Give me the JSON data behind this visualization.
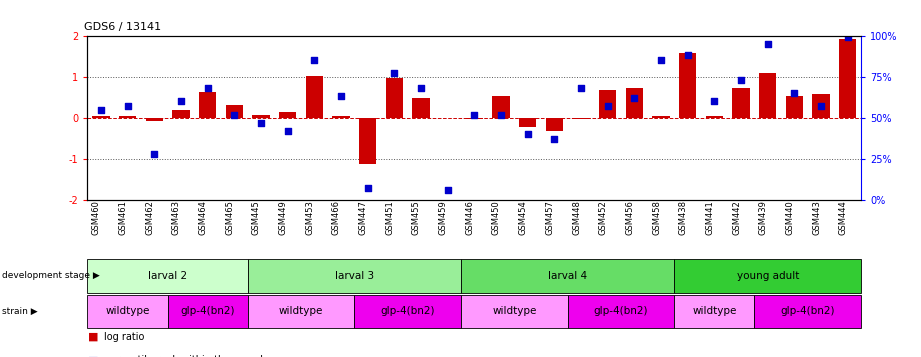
{
  "title": "GDS6 / 13141",
  "samples": [
    "GSM460",
    "GSM461",
    "GSM462",
    "GSM463",
    "GSM464",
    "GSM465",
    "GSM445",
    "GSM449",
    "GSM453",
    "GSM466",
    "GSM447",
    "GSM451",
    "GSM455",
    "GSM459",
    "GSM446",
    "GSM450",
    "GSM454",
    "GSM457",
    "GSM448",
    "GSM452",
    "GSM456",
    "GSM458",
    "GSM438",
    "GSM441",
    "GSM442",
    "GSM439",
    "GSM440",
    "GSM443",
    "GSM444"
  ],
  "log_ratio": [
    0.05,
    0.04,
    -0.08,
    0.18,
    0.62,
    0.32,
    0.08,
    0.15,
    1.02,
    0.04,
    -1.12,
    0.98,
    0.48,
    0.0,
    -0.04,
    0.52,
    -0.22,
    -0.32,
    -0.04,
    0.68,
    0.72,
    0.04,
    1.58,
    0.04,
    0.72,
    1.08,
    0.52,
    0.58,
    1.92
  ],
  "percentile": [
    55,
    57,
    28,
    60,
    68,
    52,
    47,
    42,
    85,
    63,
    7,
    77,
    68,
    6,
    52,
    52,
    40,
    37,
    68,
    57,
    62,
    85,
    88,
    60,
    73,
    95,
    65,
    57,
    99
  ],
  "dev_stages": [
    {
      "label": "larval 2",
      "start": 0,
      "end": 6,
      "color": "#ccffcc"
    },
    {
      "label": "larval 3",
      "start": 6,
      "end": 14,
      "color": "#99ee99"
    },
    {
      "label": "larval 4",
      "start": 14,
      "end": 22,
      "color": "#66dd66"
    },
    {
      "label": "young adult",
      "start": 22,
      "end": 29,
      "color": "#33cc33"
    }
  ],
  "strains": [
    {
      "label": "wildtype",
      "start": 0,
      "end": 3,
      "color": "#ff99ff"
    },
    {
      "label": "glp-4(bn2)",
      "start": 3,
      "end": 6,
      "color": "#ee00ee"
    },
    {
      "label": "wildtype",
      "start": 6,
      "end": 10,
      "color": "#ff99ff"
    },
    {
      "label": "glp-4(bn2)",
      "start": 10,
      "end": 14,
      "color": "#ee00ee"
    },
    {
      "label": "wildtype",
      "start": 14,
      "end": 18,
      "color": "#ff99ff"
    },
    {
      "label": "glp-4(bn2)",
      "start": 18,
      "end": 22,
      "color": "#ee00ee"
    },
    {
      "label": "wildtype",
      "start": 22,
      "end": 25,
      "color": "#ff99ff"
    },
    {
      "label": "glp-4(bn2)",
      "start": 25,
      "end": 29,
      "color": "#ee00ee"
    }
  ],
  "bar_color": "#cc0000",
  "scatter_color": "#0000cc",
  "ylim_left": [
    -2,
    2
  ],
  "ylim_right": [
    0,
    100
  ],
  "yticks_left": [
    -2,
    -1,
    0,
    1,
    2
  ],
  "yticks_right": [
    0,
    25,
    50,
    75,
    100
  ],
  "yticklabels_right": [
    "0%",
    "25%",
    "50%",
    "75%",
    "100%"
  ],
  "hline_color": "#cc0000",
  "dotline_color": "#555555",
  "bg_color": "#ffffff",
  "fig_width": 9.21,
  "fig_height": 3.57,
  "fig_dpi": 100
}
